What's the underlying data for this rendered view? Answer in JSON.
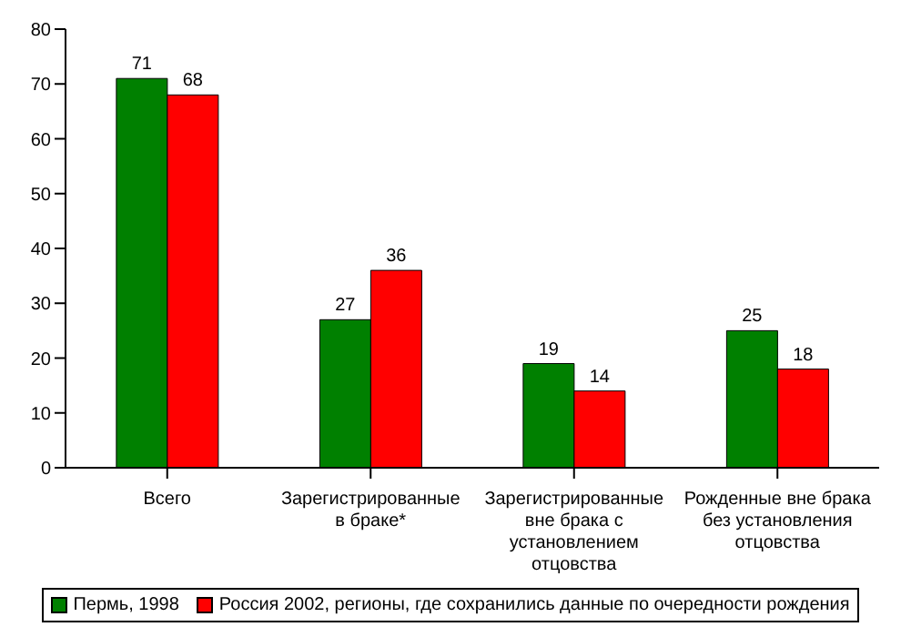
{
  "chart_data": {
    "type": "bar",
    "categories": [
      "Всего",
      "Зарегистрированные в браке*",
      "Зарегистрированные вне брака с установлением отцовства",
      "Рожденные вне брака без установления отцовства"
    ],
    "series": [
      {
        "name": "Пермь, 1998",
        "color": "#008000",
        "values": [
          71,
          27,
          19,
          25
        ]
      },
      {
        "name": "Россия 2002, регионы, где сохранились данные по очередности рождения",
        "color": "#ff0000",
        "values": [
          68,
          36,
          14,
          18
        ]
      }
    ],
    "ylim": [
      0,
      80
    ],
    "yticks": [
      0,
      10,
      20,
      30,
      40,
      50,
      60,
      70,
      80
    ],
    "data_labels": true,
    "grid": false,
    "legend": "bottom"
  }
}
